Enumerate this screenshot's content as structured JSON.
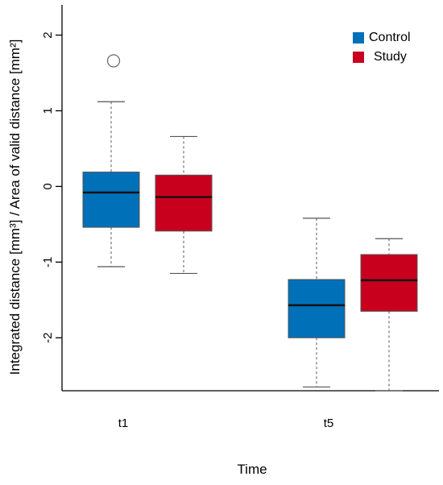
{
  "chart_data": {
    "type": "boxplot",
    "title": "",
    "xlabel": "Time",
    "ylabel": "Integrated distance [mm³] / Area of valid distance [mm²]",
    "ylim": [
      -2.7,
      2.4
    ],
    "yticks": [
      2,
      1,
      0,
      -1,
      -2
    ],
    "categories": [
      "t1",
      "t5"
    ],
    "legend": {
      "position": "top-right"
    },
    "series": [
      {
        "name": "Control",
        "color": "#0070B8",
        "boxes": [
          {
            "category": "t1",
            "whisker_low": -1.06,
            "q1": -0.54,
            "median": -0.08,
            "q3": 0.19,
            "whisker_high": 1.12,
            "outliers": [
              1.66
            ]
          },
          {
            "category": "t5",
            "whisker_low": -2.65,
            "q1": -2.0,
            "median": -1.57,
            "q3": -1.23,
            "whisker_high": -0.42,
            "outliers": []
          }
        ]
      },
      {
        "name": "Study",
        "color": "#C8001E",
        "boxes": [
          {
            "category": "t1",
            "whisker_low": -1.15,
            "q1": -0.59,
            "median": -0.14,
            "q3": 0.15,
            "whisker_high": 0.66,
            "outliers": []
          },
          {
            "category": "t5",
            "whisker_low": -2.7,
            "q1": -1.65,
            "median": -1.24,
            "q3": -0.9,
            "whisker_high": -0.69,
            "outliers": []
          }
        ]
      }
    ]
  }
}
